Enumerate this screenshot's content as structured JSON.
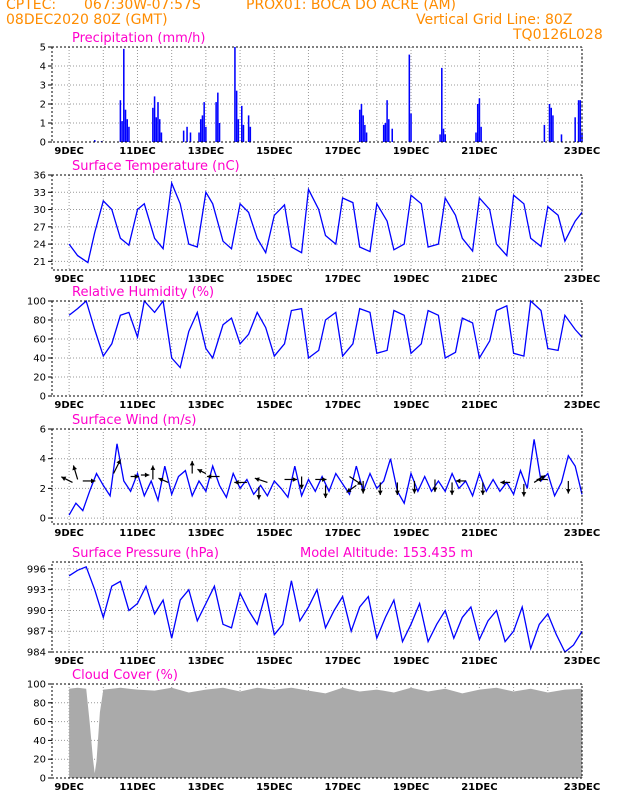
{
  "header": {
    "line1_left": "CPTEC:",
    "coords": "067:30W-07:57S",
    "station": "PROX01: BOCA DO ACRE (AM)",
    "date": "08DEC2020 80Z (GMT)",
    "grid_note": "Vertical Grid Line: 80Z",
    "model_code": "TQ0126L028"
  },
  "x_ticks": [
    "9DEC",
    "11DEC",
    "13DEC",
    "15DEC",
    "17DEC",
    "19DEC",
    "21DEC",
    "23DEC"
  ],
  "chart_data": [
    {
      "type": "bar",
      "title": "Precipitation (mm/h)",
      "ylim": [
        0,
        5
      ],
      "yticks": [
        0,
        1,
        2,
        3,
        4,
        5
      ],
      "color": "#0000ff",
      "bars": [
        [
          0.75,
          0.1
        ],
        [
          0.95,
          0.05
        ],
        [
          1.5,
          2.2
        ],
        [
          1.55,
          1.1
        ],
        [
          1.6,
          4.9
        ],
        [
          1.65,
          1.7
        ],
        [
          1.7,
          1.2
        ],
        [
          1.75,
          0.8
        ],
        [
          2.45,
          1.8
        ],
        [
          2.5,
          2.4
        ],
        [
          2.55,
          1.3
        ],
        [
          2.6,
          2.1
        ],
        [
          2.65,
          1.2
        ],
        [
          2.7,
          0.5
        ],
        [
          3.35,
          0.6
        ],
        [
          3.45,
          0.8
        ],
        [
          3.55,
          0.5
        ],
        [
          3.8,
          0.5
        ],
        [
          3.85,
          1.2
        ],
        [
          3.9,
          1.4
        ],
        [
          3.95,
          2.1
        ],
        [
          4.0,
          0.8
        ],
        [
          4.3,
          2.1
        ],
        [
          4.35,
          2.6
        ],
        [
          4.4,
          1.0
        ],
        [
          4.85,
          5.0
        ],
        [
          4.9,
          2.7
        ],
        [
          4.95,
          1.2
        ],
        [
          5.05,
          1.9
        ],
        [
          5.1,
          0.9
        ],
        [
          5.25,
          1.4
        ],
        [
          5.3,
          0.8
        ],
        [
          8.5,
          1.7
        ],
        [
          8.55,
          2.0
        ],
        [
          8.6,
          1.4
        ],
        [
          8.65,
          0.9
        ],
        [
          8.7,
          0.5
        ],
        [
          9.2,
          0.9
        ],
        [
          9.25,
          1.0
        ],
        [
          9.3,
          2.2
        ],
        [
          9.35,
          1.2
        ],
        [
          9.45,
          0.7
        ],
        [
          9.95,
          4.6
        ],
        [
          10.0,
          1.5
        ],
        [
          10.85,
          0.4
        ],
        [
          10.9,
          3.9
        ],
        [
          10.95,
          0.7
        ],
        [
          11.0,
          0.4
        ],
        [
          11.9,
          0.5
        ],
        [
          11.95,
          2.0
        ],
        [
          12.0,
          2.3
        ],
        [
          12.05,
          0.8
        ],
        [
          13.9,
          0.9
        ],
        [
          14.05,
          2.0
        ],
        [
          14.1,
          1.8
        ],
        [
          14.15,
          1.4
        ],
        [
          14.4,
          0.4
        ],
        [
          14.8,
          1.3
        ],
        [
          14.9,
          2.2
        ],
        [
          14.95,
          2.2
        ],
        [
          15.0,
          0.5
        ]
      ]
    },
    {
      "type": "line",
      "title": "Surface Temperature (nC)",
      "ylim": [
        19.5,
        36
      ],
      "yticks": [
        21,
        24,
        27,
        30,
        33,
        36
      ],
      "color": "#0000ff",
      "x": [
        0.0,
        0.25,
        0.55,
        0.75,
        1.0,
        1.25,
        1.5,
        1.75,
        2.0,
        2.2,
        2.5,
        2.75,
        3.0,
        3.25,
        3.5,
        3.75,
        4.0,
        4.2,
        4.5,
        4.75,
        5.0,
        5.25,
        5.5,
        5.75,
        6.0,
        6.3,
        6.5,
        6.8,
        7.0,
        7.3,
        7.5,
        7.8,
        8.0,
        8.3,
        8.5,
        8.8,
        9.0,
        9.3,
        9.5,
        9.8,
        10.0,
        10.3,
        10.5,
        10.8,
        11.0,
        11.3,
        11.5,
        11.8,
        12.0,
        12.3,
        12.5,
        12.8,
        13.0,
        13.3,
        13.5,
        13.8,
        14.0,
        14.3,
        14.5,
        14.8,
        15.0
      ],
      "y": [
        24.0,
        22.0,
        20.8,
        26.0,
        31.5,
        30.0,
        25.0,
        23.8,
        30.0,
        31.0,
        25.0,
        23.2,
        34.6,
        31.0,
        24.0,
        23.5,
        33.0,
        31.0,
        24.5,
        23.2,
        31.0,
        29.5,
        25.0,
        22.5,
        29.0,
        30.8,
        23.5,
        22.5,
        33.5,
        30.0,
        25.5,
        24.0,
        32.0,
        31.2,
        23.5,
        22.7,
        31.0,
        28.0,
        23.0,
        24.0,
        32.5,
        31.0,
        23.5,
        24.0,
        32.0,
        29.0,
        25.0,
        22.8,
        32.0,
        30.0,
        24.0,
        22.0,
        32.5,
        31.0,
        25.0,
        23.6,
        30.5,
        29.0,
        24.5,
        28.0,
        29.5
      ]
    },
    {
      "type": "line",
      "title": "Relative Humidity (%)",
      "ylim": [
        0,
        100
      ],
      "yticks": [
        0,
        20,
        40,
        60,
        80,
        100
      ],
      "color": "#0000ff",
      "x": [
        0.0,
        0.25,
        0.5,
        0.75,
        1.0,
        1.25,
        1.5,
        1.75,
        2.0,
        2.2,
        2.5,
        2.75,
        3.0,
        3.25,
        3.5,
        3.75,
        4.0,
        4.2,
        4.5,
        4.75,
        5.0,
        5.25,
        5.5,
        5.75,
        6.0,
        6.3,
        6.5,
        6.8,
        7.0,
        7.3,
        7.5,
        7.8,
        8.0,
        8.3,
        8.5,
        8.8,
        9.0,
        9.3,
        9.5,
        9.8,
        10.0,
        10.3,
        10.5,
        10.8,
        11.0,
        11.3,
        11.5,
        11.8,
        12.0,
        12.3,
        12.5,
        12.8,
        13.0,
        13.3,
        13.5,
        13.8,
        14.0,
        14.3,
        14.5,
        14.8,
        15.0
      ],
      "y": [
        85,
        92,
        100,
        70,
        42,
        55,
        85,
        88,
        62,
        100,
        88,
        100,
        40,
        30,
        68,
        88,
        50,
        40,
        75,
        82,
        55,
        65,
        88,
        72,
        42,
        55,
        90,
        92,
        40,
        48,
        80,
        88,
        42,
        55,
        92,
        88,
        45,
        48,
        90,
        85,
        45,
        55,
        90,
        85,
        40,
        46,
        82,
        77,
        40,
        58,
        90,
        95,
        45,
        42,
        100,
        90,
        50,
        48,
        85,
        70,
        62
      ]
    },
    {
      "type": "line",
      "title": "Surface Wind (m/s)",
      "ylim": [
        -0.4,
        6
      ],
      "yticks": [
        0,
        2,
        4,
        6
      ],
      "color": "#0000ff",
      "x": [
        0.0,
        0.2,
        0.4,
        0.6,
        0.8,
        1.0,
        1.2,
        1.4,
        1.6,
        1.8,
        2.0,
        2.2,
        2.4,
        2.6,
        2.8,
        3.0,
        3.2,
        3.4,
        3.6,
        3.8,
        4.0,
        4.2,
        4.4,
        4.6,
        4.8,
        5.0,
        5.2,
        5.4,
        5.6,
        5.8,
        6.0,
        6.2,
        6.4,
        6.6,
        6.8,
        7.0,
        7.2,
        7.4,
        7.6,
        7.8,
        8.0,
        8.2,
        8.4,
        8.6,
        8.8,
        9.0,
        9.2,
        9.4,
        9.6,
        9.8,
        10.0,
        10.2,
        10.4,
        10.6,
        10.8,
        11.0,
        11.2,
        11.4,
        11.6,
        11.8,
        12.0,
        12.2,
        12.4,
        12.6,
        12.8,
        13.0,
        13.2,
        13.4,
        13.6,
        13.8,
        14.0,
        14.2,
        14.4,
        14.6,
        14.8,
        15.0
      ],
      "y": [
        0.2,
        1.0,
        0.5,
        1.8,
        3.0,
        2.2,
        1.5,
        5.0,
        2.5,
        1.8,
        3.0,
        1.5,
        2.5,
        1.2,
        3.5,
        1.6,
        2.8,
        3.2,
        1.5,
        2.5,
        1.8,
        3.5,
        2.2,
        1.4,
        3.0,
        2.0,
        2.6,
        1.6,
        2.2,
        1.5,
        2.5,
        2.0,
        1.4,
        3.5,
        1.5,
        2.6,
        1.8,
        2.8,
        1.8,
        3.0,
        2.3,
        1.6,
        3.5,
        1.8,
        3.0,
        2.0,
        2.5,
        4.0,
        1.8,
        1.0,
        3.0,
        1.8,
        2.8,
        1.8,
        2.5,
        1.8,
        3.0,
        2.0,
        2.5,
        1.5,
        3.0,
        1.8,
        2.6,
        1.8,
        2.4,
        1.6,
        3.2,
        2.0,
        5.3,
        2.5,
        3.0,
        1.5,
        2.4,
        4.2,
        3.5,
        1.6
      ]
    },
    {
      "type": "line",
      "title": "Surface Pressure (hPa)",
      "annotation": "Model Altitude: 153.435 m",
      "ylim": [
        984,
        997
      ],
      "yticks": [
        984,
        987,
        990,
        993,
        996
      ],
      "color": "#0000ff",
      "x": [
        0.0,
        0.25,
        0.5,
        0.75,
        1.0,
        1.25,
        1.5,
        1.75,
        2.0,
        2.25,
        2.5,
        2.75,
        3.0,
        3.25,
        3.5,
        3.75,
        4.0,
        4.25,
        4.5,
        4.75,
        5.0,
        5.25,
        5.5,
        5.75,
        6.0,
        6.25,
        6.5,
        6.75,
        7.0,
        7.25,
        7.5,
        7.75,
        8.0,
        8.25,
        8.5,
        8.75,
        9.0,
        9.25,
        9.5,
        9.75,
        10.0,
        10.25,
        10.5,
        10.75,
        11.0,
        11.25,
        11.5,
        11.75,
        12.0,
        12.25,
        12.5,
        12.75,
        13.0,
        13.25,
        13.5,
        13.75,
        14.0,
        14.25,
        14.5,
        14.75,
        15.0
      ],
      "y": [
        995.0,
        995.8,
        996.3,
        993.0,
        989.0,
        993.5,
        994.2,
        990.0,
        991.0,
        993.5,
        989.5,
        991.5,
        986.0,
        991.5,
        993.0,
        988.5,
        991.0,
        993.5,
        988.0,
        987.5,
        992.5,
        990.0,
        988.0,
        992.5,
        986.5,
        988.0,
        994.3,
        988.5,
        990.5,
        993.0,
        987.5,
        990.0,
        992.0,
        987.0,
        990.5,
        992.0,
        986.0,
        989.0,
        991.5,
        985.5,
        988.0,
        991.0,
        985.5,
        988.0,
        990.0,
        986.0,
        989.0,
        990.5,
        985.8,
        988.5,
        990.0,
        985.5,
        987.0,
        990.5,
        984.5,
        988.0,
        989.5,
        986.5,
        984.0,
        985.0,
        987.0
      ]
    },
    {
      "type": "area",
      "title": "Cloud Cover (%)",
      "ylim": [
        0,
        100
      ],
      "yticks": [
        0,
        20,
        40,
        60,
        80,
        100
      ],
      "color": "#aaaaaa",
      "x": [
        0.0,
        0.25,
        0.5,
        0.6,
        0.7,
        0.75,
        0.8,
        0.9,
        1.0,
        1.25,
        1.5,
        1.75,
        2.0,
        2.5,
        3.0,
        3.5,
        4.0,
        4.5,
        5.0,
        5.5,
        6.0,
        6.5,
        7.0,
        7.5,
        8.0,
        8.5,
        9.0,
        9.5,
        10.0,
        10.5,
        11.0,
        11.5,
        12.0,
        12.5,
        13.0,
        13.5,
        14.0,
        14.5,
        15.0
      ],
      "y": [
        95,
        96,
        95,
        60,
        20,
        5,
        18,
        70,
        94,
        95,
        96,
        95,
        94,
        93,
        96,
        91,
        94,
        96,
        92,
        96,
        94,
        96,
        93,
        90,
        96,
        92,
        94,
        91,
        96,
        92,
        95,
        90,
        94,
        96,
        92,
        95,
        91,
        94,
        95
      ]
    }
  ],
  "wind_arrows": [
    [
      0.1,
      2.4,
      -0.8,
      0.4
    ],
    [
      0.25,
      2.6,
      -0.3,
      1.0
    ],
    [
      0.4,
      2.5,
      0.9,
      0.0
    ],
    [
      1.3,
      3.0,
      0.5,
      1.0
    ],
    [
      1.8,
      2.8,
      0.6,
      0.0
    ],
    [
      2.1,
      2.9,
      0.6,
      0.0
    ],
    [
      2.45,
      2.6,
      0.0,
      1.0
    ],
    [
      2.9,
      2.4,
      -0.7,
      0.3
    ],
    [
      3.6,
      3.0,
      0.0,
      0.9
    ],
    [
      4.0,
      3.0,
      -0.6,
      0.3
    ],
    [
      4.4,
      2.8,
      -0.9,
      0.0
    ],
    [
      5.2,
      2.4,
      -0.9,
      0.0
    ],
    [
      5.55,
      2.1,
      0.0,
      -0.9
    ],
    [
      5.8,
      2.4,
      -0.9,
      0.3
    ],
    [
      6.3,
      2.6,
      0.9,
      0.0
    ],
    [
      6.8,
      2.8,
      0.0,
      -0.9
    ],
    [
      7.2,
      2.6,
      0.8,
      0.0
    ],
    [
      7.5,
      2.2,
      0.0,
      -0.9
    ],
    [
      8.2,
      2.8,
      0.9,
      -0.6
    ],
    [
      8.4,
      2.2,
      -0.7,
      -0.5
    ],
    [
      8.6,
      2.5,
      0.0,
      -0.9
    ],
    [
      9.1,
      2.4,
      0.0,
      -0.9
    ],
    [
      9.6,
      2.4,
      0.0,
      -0.9
    ],
    [
      10.1,
      2.5,
      0.0,
      -0.9
    ],
    [
      10.7,
      2.6,
      0.0,
      -0.9
    ],
    [
      11.2,
      2.4,
      0.0,
      -0.9
    ],
    [
      11.6,
      2.5,
      -0.7,
      0.0
    ],
    [
      12.1,
      2.4,
      0.0,
      -0.9
    ],
    [
      12.9,
      2.4,
      -0.7,
      0.0
    ],
    [
      13.3,
      2.3,
      0.0,
      -0.9
    ],
    [
      13.6,
      2.4,
      0.8,
      0.5
    ],
    [
      14.0,
      2.6,
      -0.8,
      0.0
    ],
    [
      14.6,
      2.5,
      0.0,
      -0.9
    ]
  ]
}
